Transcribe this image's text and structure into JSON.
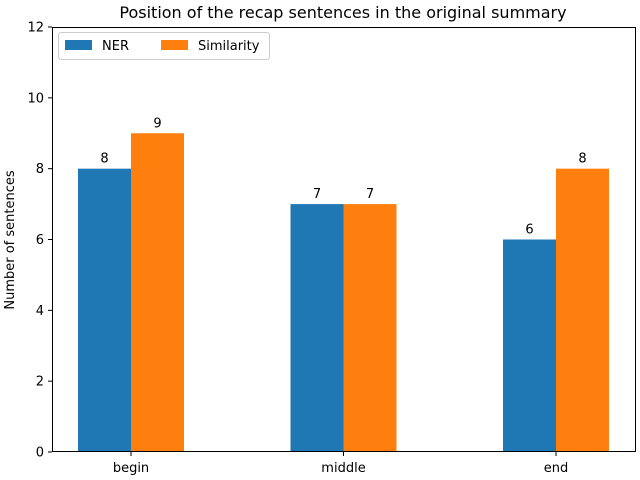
{
  "chart_data": {
    "type": "bar",
    "title": "Position of the recap sentences in the original summary",
    "xlabel": "",
    "ylabel": "Number of sentences",
    "categories": [
      "begin",
      "middle",
      "end"
    ],
    "series": [
      {
        "name": "NER",
        "values": [
          8,
          7,
          6
        ],
        "color": "#1f77b4"
      },
      {
        "name": "Similarity",
        "values": [
          9,
          7,
          8
        ],
        "color": "#ff7f0e"
      }
    ],
    "ylim": [
      0,
      12
    ],
    "yticks": [
      0,
      2,
      4,
      6,
      8,
      10,
      12
    ],
    "grid": false,
    "legend_placement": "top-left",
    "legend_columns": 2,
    "data_labels": true
  }
}
